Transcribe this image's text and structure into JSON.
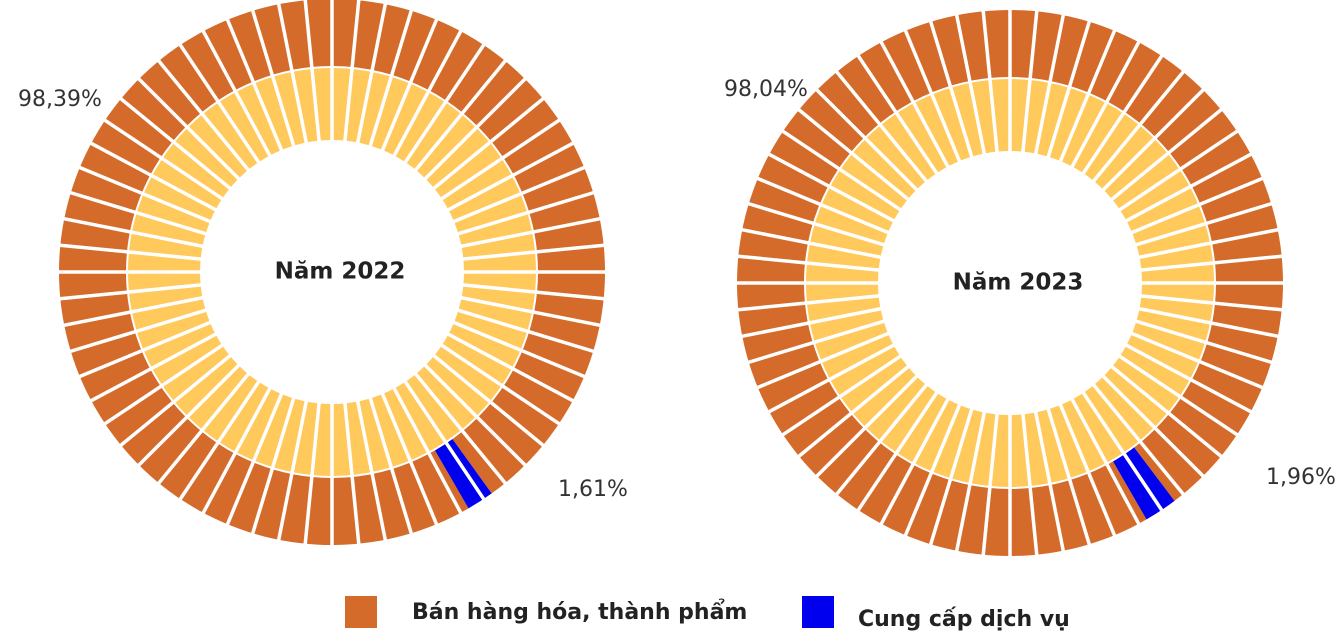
{
  "chart_data": [
    {
      "type": "donut",
      "title": "Năm 2022",
      "categories": [
        "Bán hàng hóa, thành phẩm",
        "Cung cấp dịch vụ"
      ],
      "values": [
        98.39,
        1.61
      ],
      "value_labels": [
        "98,39%",
        "1,61%"
      ],
      "colors": [
        "#d56b2a",
        "#0000ee"
      ]
    },
    {
      "type": "donut",
      "title": "Năm 2023",
      "categories": [
        "Bán hàng hóa, thành phẩm",
        "Cung cấp dịch vụ"
      ],
      "values": [
        98.04,
        1.96
      ],
      "value_labels": [
        "98,04%",
        "1,96%"
      ],
      "colors": [
        "#d56b2a",
        "#0000ee"
      ]
    }
  ]
}
